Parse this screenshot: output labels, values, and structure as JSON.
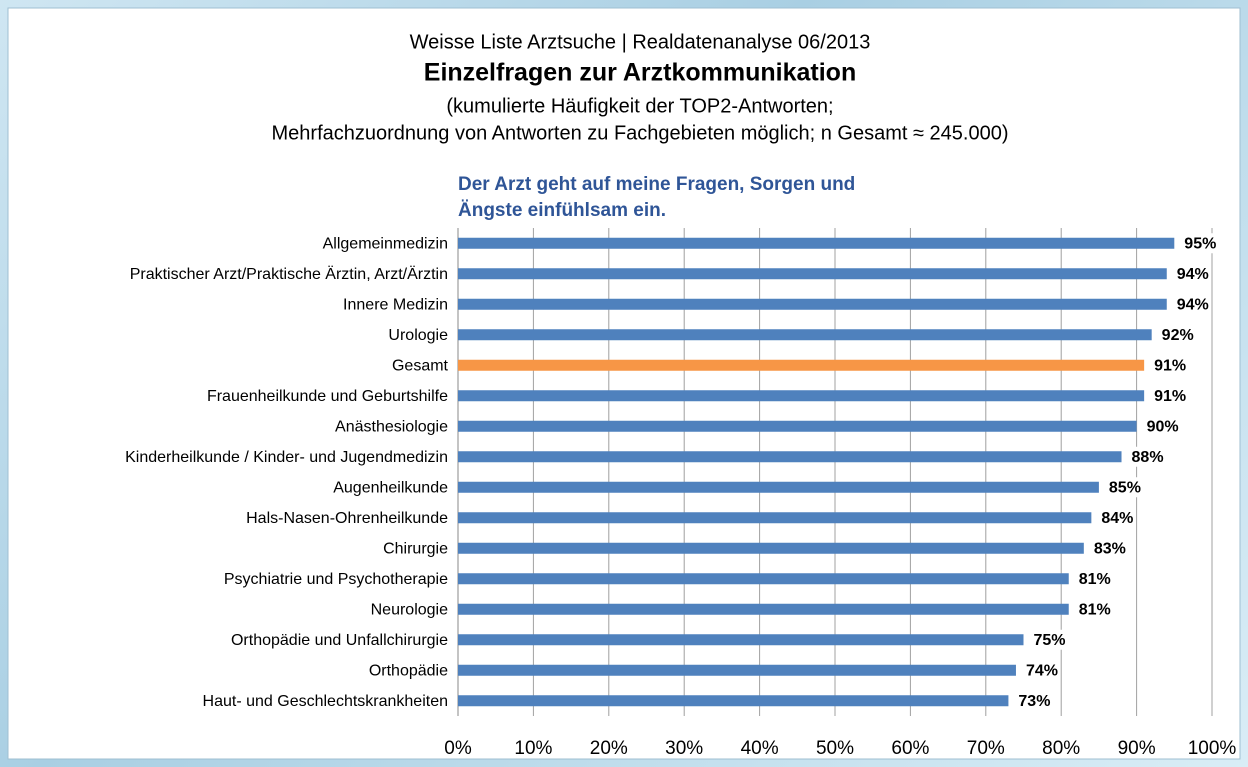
{
  "chart_data": {
    "type": "bar",
    "orientation": "horizontal",
    "suptitle": "Weisse Liste Arztsuche | Realdatenanalyse 06/2013",
    "heading": "Einzelfragen zur Arztkommunikation",
    "subtitle": [
      "(kumulierte Häufigkeit der TOP2-Antworten;",
      "Mehrfachzuordnung von Antworten zu Fachgebieten möglich; n Gesamt ≈ 245.000)"
    ],
    "title": [
      "Der Arzt geht auf meine Fragen, Sorgen und",
      "Ängste einfühlsam ein."
    ],
    "categories": [
      "Allgemeinmedizin",
      "Praktischer Arzt/Praktische Ärztin, Arzt/Ärztin",
      "Innere Medizin",
      "Urologie",
      "Gesamt",
      "Frauenheilkunde und Geburtshilfe",
      "Anästhesiologie",
      "Kinderheilkunde / Kinder- und Jugendmedizin",
      "Augenheilkunde",
      "Hals-Nasen-Ohrenheilkunde",
      "Chirurgie",
      "Psychiatrie und Psychotherapie",
      "Neurologie",
      "Orthopädie und Unfallchirurgie",
      "Orthopädie",
      "Haut- und Geschlechtskrankheiten"
    ],
    "values": [
      95,
      94,
      94,
      92,
      91,
      91,
      90,
      88,
      85,
      84,
      83,
      81,
      81,
      75,
      74,
      73
    ],
    "value_labels": [
      "95%",
      "94%",
      "94%",
      "92%",
      "91%",
      "91%",
      "90%",
      "88%",
      "85%",
      "84%",
      "83%",
      "81%",
      "81%",
      "75%",
      "74%",
      "73%"
    ],
    "colors": [
      "#4f81bd",
      "#4f81bd",
      "#4f81bd",
      "#4f81bd",
      "#f79646",
      "#4f81bd",
      "#4f81bd",
      "#4f81bd",
      "#4f81bd",
      "#4f81bd",
      "#4f81bd",
      "#4f81bd",
      "#4f81bd",
      "#4f81bd",
      "#4f81bd",
      "#4f81bd"
    ],
    "xlim": [
      0,
      100
    ],
    "xticks": [
      {
        "value": 0,
        "label": "0%"
      },
      {
        "value": 10,
        "label": "10%"
      },
      {
        "value": 20,
        "label": "20%"
      },
      {
        "value": 30,
        "label": "30%"
      },
      {
        "value": 40,
        "label": "40%"
      },
      {
        "value": 50,
        "label": "50%"
      },
      {
        "value": 60,
        "label": "60%"
      },
      {
        "value": 70,
        "label": "70%"
      },
      {
        "value": 80,
        "label": "80%"
      },
      {
        "value": 90,
        "label": "90%"
      },
      {
        "value": 100,
        "label": "100%"
      }
    ],
    "grid": true
  }
}
